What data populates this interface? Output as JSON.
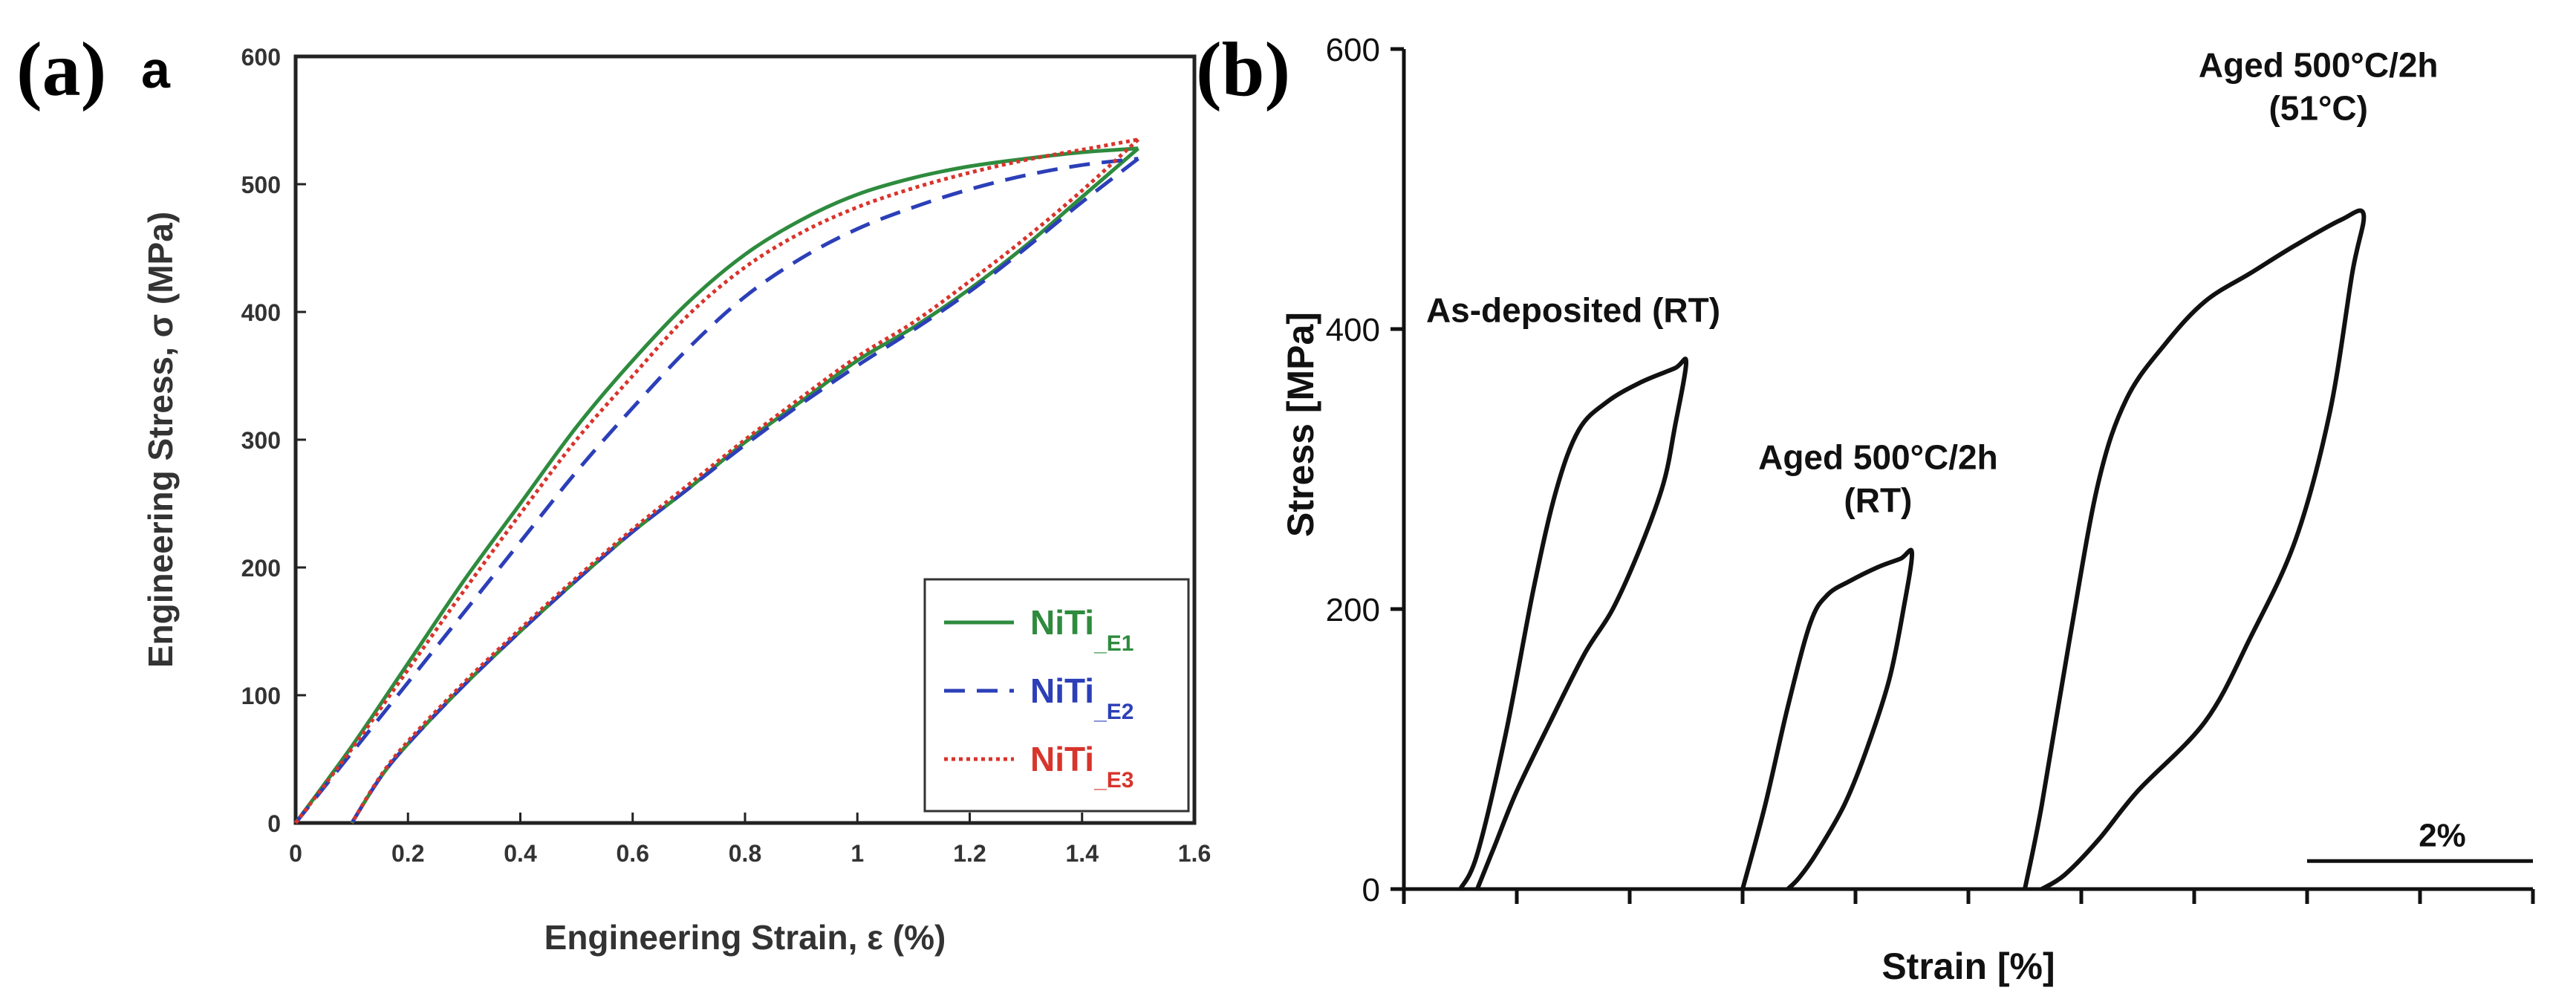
{
  "panels": {
    "a": {
      "label": "(a)",
      "inner_label": "a"
    },
    "b": {
      "label": "(b)"
    }
  },
  "chart_data": [
    {
      "id": "a",
      "type": "line",
      "title": "",
      "xlabel": "Engineering Strain, ε (%)",
      "ylabel": "Engineering Stress, σ (MPa)",
      "xlim": [
        0,
        1.6
      ],
      "ylim": [
        0,
        600
      ],
      "x_ticks": [
        "0",
        "0.2",
        "0.4",
        "0.6",
        "0.8",
        "1",
        "1.2",
        "1.4",
        "1.6"
      ],
      "y_ticks": [
        "0",
        "100",
        "200",
        "300",
        "400",
        "500",
        "600"
      ],
      "legend": {
        "position": "bottom-right",
        "entries": [
          {
            "name": "NiTi",
            "sub": "_E1",
            "color": "#2e8b3e",
            "dash": ""
          },
          {
            "name": "NiTi",
            "sub": "_E2",
            "color": "#2c3fb8",
            "dash": "28,16"
          },
          {
            "name": "NiTi",
            "sub": "_E3",
            "color": "#d8342c",
            "dash": "5,5"
          }
        ]
      },
      "series": [
        {
          "name": "NiTi_E1",
          "loading": [
            [
              0,
              0
            ],
            [
              0.1,
              60
            ],
            [
              0.2,
              125
            ],
            [
              0.3,
              190
            ],
            [
              0.4,
              250
            ],
            [
              0.5,
              310
            ],
            [
              0.6,
              362
            ],
            [
              0.7,
              408
            ],
            [
              0.8,
              445
            ],
            [
              0.9,
              472
            ],
            [
              1.0,
              492
            ],
            [
              1.1,
              505
            ],
            [
              1.2,
              514
            ],
            [
              1.3,
              520
            ],
            [
              1.4,
              525
            ],
            [
              1.5,
              528
            ]
          ],
          "unloading": [
            [
              1.5,
              528
            ],
            [
              1.4,
              490
            ],
            [
              1.3,
              452
            ],
            [
              1.2,
              418
            ],
            [
              1.1,
              388
            ],
            [
              1.0,
              362
            ],
            [
              0.9,
              330
            ],
            [
              0.8,
              298
            ],
            [
              0.7,
              262
            ],
            [
              0.6,
              228
            ],
            [
              0.5,
              190
            ],
            [
              0.4,
              150
            ],
            [
              0.3,
              108
            ],
            [
              0.2,
              62
            ],
            [
              0.15,
              35
            ],
            [
              0.1,
              0
            ]
          ]
        },
        {
          "name": "NiTi_E2",
          "loading": [
            [
              0,
              0
            ],
            [
              0.1,
              55
            ],
            [
              0.2,
              110
            ],
            [
              0.3,
              165
            ],
            [
              0.4,
              220
            ],
            [
              0.5,
              275
            ],
            [
              0.6,
              325
            ],
            [
              0.7,
              372
            ],
            [
              0.8,
              412
            ],
            [
              0.9,
              442
            ],
            [
              1.0,
              465
            ],
            [
              1.1,
              482
            ],
            [
              1.2,
              496
            ],
            [
              1.3,
              507
            ],
            [
              1.4,
              515
            ],
            [
              1.5,
              520
            ]
          ],
          "unloading": [
            [
              1.5,
              520
            ],
            [
              1.4,
              486
            ],
            [
              1.3,
              450
            ],
            [
              1.2,
              416
            ],
            [
              1.1,
              386
            ],
            [
              1.0,
              358
            ],
            [
              0.9,
              328
            ],
            [
              0.8,
              296
            ],
            [
              0.7,
              262
            ],
            [
              0.6,
              228
            ],
            [
              0.5,
              190
            ],
            [
              0.4,
              150
            ],
            [
              0.3,
              108
            ],
            [
              0.2,
              62
            ],
            [
              0.15,
              35
            ],
            [
              0.1,
              0
            ]
          ]
        },
        {
          "name": "NiTi_E3",
          "loading": [
            [
              0,
              0
            ],
            [
              0.1,
              58
            ],
            [
              0.2,
              120
            ],
            [
              0.3,
              182
            ],
            [
              0.4,
              242
            ],
            [
              0.5,
              300
            ],
            [
              0.6,
              350
            ],
            [
              0.7,
              398
            ],
            [
              0.8,
              435
            ],
            [
              0.9,
              462
            ],
            [
              1.0,
              482
            ],
            [
              1.1,
              497
            ],
            [
              1.2,
              509
            ],
            [
              1.3,
              519
            ],
            [
              1.4,
              527
            ],
            [
              1.5,
              535
            ]
          ],
          "unloading": [
            [
              1.5,
              535
            ],
            [
              1.4,
              495
            ],
            [
              1.3,
              458
            ],
            [
              1.2,
              424
            ],
            [
              1.1,
              392
            ],
            [
              1.0,
              365
            ],
            [
              0.9,
              333
            ],
            [
              0.8,
              300
            ],
            [
              0.7,
              265
            ],
            [
              0.6,
              230
            ],
            [
              0.5,
              192
            ],
            [
              0.4,
              152
            ],
            [
              0.3,
              110
            ],
            [
              0.2,
              64
            ],
            [
              0.15,
              36
            ],
            [
              0.1,
              0
            ]
          ]
        }
      ]
    },
    {
      "id": "b",
      "type": "line",
      "title": "",
      "xlabel": "Strain [%]",
      "ylabel": "Stress [MPa]",
      "xlim": [
        0,
        20
      ],
      "ylim": [
        0,
        600
      ],
      "y_ticks": [
        "0",
        "200",
        "400",
        "600"
      ],
      "x_tick_count": 10,
      "scale_bar": {
        "label": "2%",
        "from": 16,
        "to": 20,
        "y": 20
      },
      "annotations": [
        {
          "lines": [
            "As-deposited (RT)"
          ],
          "x": 3.0,
          "y": 405
        },
        {
          "lines": [
            "Aged 500°C/2h",
            "(RT)"
          ],
          "x": 8.4,
          "y": 300
        },
        {
          "lines": [
            "Aged 500°C/2h",
            "(51°C)"
          ],
          "x": 16.2,
          "y": 580
        }
      ],
      "series": [
        {
          "name": "As-deposited (RT)",
          "points": [
            [
              1.0,
              0
            ],
            [
              1.3,
              25
            ],
            [
              1.8,
              110
            ],
            [
              2.3,
              215
            ],
            [
              2.7,
              285
            ],
            [
              3.1,
              328
            ],
            [
              3.6,
              348
            ],
            [
              4.2,
              362
            ],
            [
              4.8,
              372
            ],
            [
              5.0,
              376
            ],
            [
              4.8,
              330
            ],
            [
              4.6,
              290
            ],
            [
              4.2,
              245
            ],
            [
              3.7,
              200
            ],
            [
              3.2,
              168
            ],
            [
              2.6,
              120
            ],
            [
              2.0,
              70
            ],
            [
              1.6,
              30
            ],
            [
              1.3,
              0
            ]
          ]
        },
        {
          "name": "Aged 500°C/2h (RT)",
          "points": [
            [
              6.0,
              0
            ],
            [
              6.4,
              60
            ],
            [
              6.8,
              130
            ],
            [
              7.2,
              190
            ],
            [
              7.5,
              210
            ],
            [
              7.9,
              220
            ],
            [
              8.4,
              230
            ],
            [
              8.8,
              236
            ],
            [
              9.0,
              240
            ],
            [
              8.85,
              200
            ],
            [
              8.6,
              150
            ],
            [
              8.2,
              100
            ],
            [
              7.8,
              60
            ],
            [
              7.3,
              25
            ],
            [
              7.0,
              8
            ],
            [
              6.8,
              0
            ]
          ]
        },
        {
          "name": "Aged 500°C/2h (51°C)",
          "points": [
            [
              11.0,
              0
            ],
            [
              11.3,
              60
            ],
            [
              11.8,
              180
            ],
            [
              12.3,
              290
            ],
            [
              12.8,
              350
            ],
            [
              13.5,
              390
            ],
            [
              14.2,
              420
            ],
            [
              15.0,
              440
            ],
            [
              15.8,
              460
            ],
            [
              16.6,
              478
            ],
            [
              17.0,
              482
            ],
            [
              16.8,
              440
            ],
            [
              16.4,
              340
            ],
            [
              15.8,
              250
            ],
            [
              15.0,
              180
            ],
            [
              14.2,
              120
            ],
            [
              13.0,
              70
            ],
            [
              12.3,
              35
            ],
            [
              11.7,
              10
            ],
            [
              11.3,
              0
            ]
          ]
        }
      ]
    }
  ]
}
